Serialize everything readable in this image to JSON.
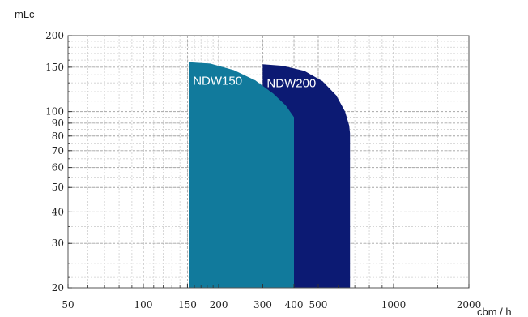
{
  "chart_data": {
    "type": "area",
    "title": "",
    "xlabel": "cbm / h",
    "ylabel": "mLc",
    "x_scale": "log",
    "y_scale": "log",
    "xlim": [
      50,
      2000
    ],
    "ylim": [
      20,
      200
    ],
    "x_ticks": [
      {
        "value": 50,
        "label": "50"
      },
      {
        "value": 100,
        "label": "100"
      },
      {
        "value": 150,
        "label": "150"
      },
      {
        "value": 200,
        "label": "200"
      },
      {
        "value": 300,
        "label": "300"
      },
      {
        "value": 400,
        "label": "400"
      },
      {
        "value": 500,
        "label": "500"
      },
      {
        "value": 1000,
        "label": "1000"
      },
      {
        "value": 2000,
        "label": "2000"
      }
    ],
    "y_ticks": [
      {
        "value": 20,
        "label": "20"
      },
      {
        "value": 30,
        "label": "30"
      },
      {
        "value": 40,
        "label": "40"
      },
      {
        "value": 50,
        "label": "50"
      },
      {
        "value": 60,
        "label": "60"
      },
      {
        "value": 70,
        "label": "70"
      },
      {
        "value": 80,
        "label": "80"
      },
      {
        "value": 90,
        "label": "90"
      },
      {
        "value": 100,
        "label": "100"
      },
      {
        "value": 150,
        "label": "150"
      },
      {
        "value": 200,
        "label": "200"
      }
    ],
    "grid": true,
    "series": [
      {
        "name": "NDW200",
        "color": "#0c1a73",
        "points": [
          {
            "x": 300,
            "y": 20
          },
          {
            "x": 300,
            "y": 154
          },
          {
            "x": 360,
            "y": 152
          },
          {
            "x": 440,
            "y": 145
          },
          {
            "x": 520,
            "y": 132
          },
          {
            "x": 590,
            "y": 116
          },
          {
            "x": 640,
            "y": 100
          },
          {
            "x": 665,
            "y": 88
          },
          {
            "x": 670,
            "y": 82
          },
          {
            "x": 670,
            "y": 20
          }
        ]
      },
      {
        "name": "NDW150",
        "color": "#117a9c",
        "points": [
          {
            "x": 152,
            "y": 20
          },
          {
            "x": 152,
            "y": 157
          },
          {
            "x": 185,
            "y": 155
          },
          {
            "x": 230,
            "y": 146
          },
          {
            "x": 280,
            "y": 133
          },
          {
            "x": 330,
            "y": 118
          },
          {
            "x": 370,
            "y": 106
          },
          {
            "x": 400,
            "y": 95
          },
          {
            "x": 400,
            "y": 20
          }
        ]
      }
    ]
  }
}
